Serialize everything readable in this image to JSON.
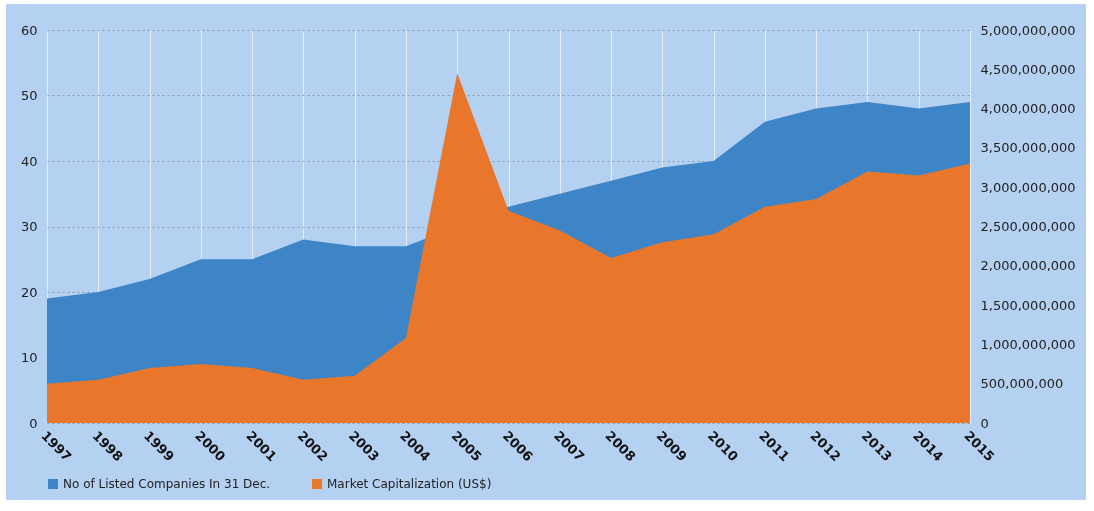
{
  "chart_data": {
    "type": "area",
    "categories": [
      "1997",
      "1998",
      "1999",
      "2000",
      "2001",
      "2002",
      "2003",
      "2004",
      "2005",
      "2006",
      "2007",
      "2008",
      "2009",
      "2010",
      "2011",
      "2012",
      "2013",
      "2014",
      "2015"
    ],
    "series": [
      {
        "name": "No of Listed Companies In 31 Dec.",
        "color": "#3d85c6",
        "values": [
          19,
          20,
          22,
          25,
          25,
          28,
          27,
          27,
          null,
          33,
          35,
          37,
          39,
          40,
          46,
          48,
          49,
          48,
          49
        ]
      },
      {
        "name": "Market Capitalization (US$)",
        "color": "#e8762b",
        "axis": "y2",
        "values": [
          500000000,
          550000000,
          700000000,
          750000000,
          700000000,
          550000000,
          600000000,
          1080000000,
          4450000000,
          2700000000,
          2450000000,
          2100000000,
          2300000000,
          2400000000,
          2750000000,
          2850000000,
          3200000000,
          3150000000,
          3300000000
        ]
      }
    ],
    "ylim": [
      0,
      60
    ],
    "yticks": [
      0,
      10,
      20,
      30,
      40,
      50,
      60
    ],
    "y2lim": [
      0,
      5000000000
    ],
    "y2ticks": [
      0,
      {
        "value": 500000000,
        "label": "500,000,000"
      },
      {
        "value": 1000000000,
        "label": "1,000,000,000"
      },
      {
        "value": 1500000000,
        "label": "1,500,000,000"
      },
      {
        "value": 2000000000,
        "label": "2,000,000,000"
      },
      {
        "value": 2500000000,
        "label": "2,500,000,000"
      },
      {
        "value": 3000000000,
        "label": "3,000,000,000"
      },
      {
        "value": 3500000000,
        "label": "3,500,000,000"
      },
      {
        "value": 4000000000,
        "label": "4,000,000,000"
      },
      {
        "value": 4500000000,
        "label": "4,500,000,000"
      },
      {
        "value": 5000000000,
        "label": "5,000,000,000"
      }
    ],
    "grid": true,
    "legend": "bottom"
  }
}
